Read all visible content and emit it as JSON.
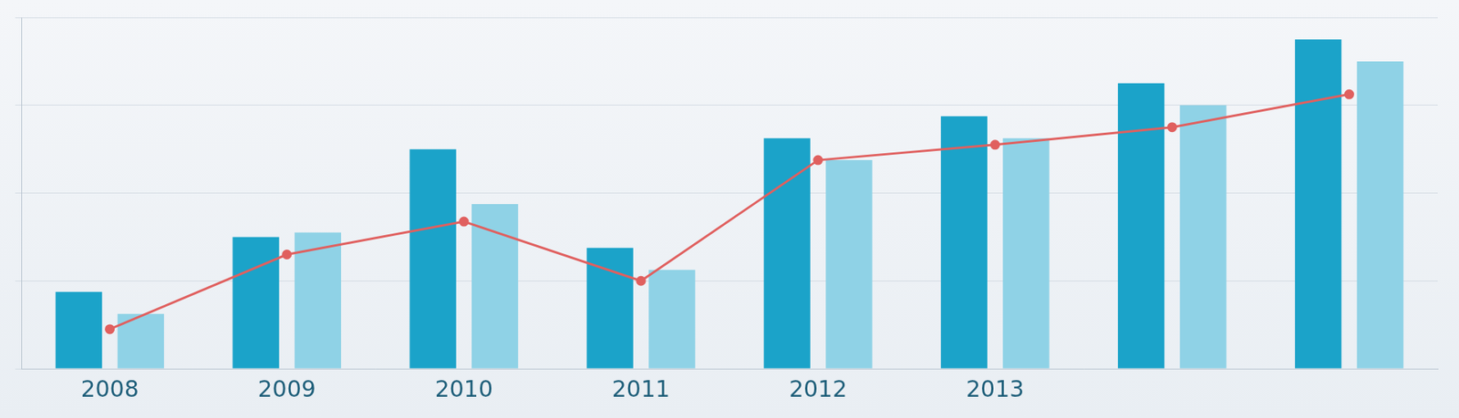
{
  "chart_data": {
    "type": "bar",
    "categories": [
      "2008",
      "2009",
      "2010",
      "2011",
      "2012",
      "2013",
      null,
      null
    ],
    "series": [
      {
        "type": "bar",
        "color": "#1ba3c9",
        "values": [
          35,
          60,
          100,
          55,
          105,
          115,
          130,
          150
        ]
      },
      {
        "type": "bar",
        "color": "#8fd2e6",
        "values": [
          25,
          62,
          75,
          45,
          95,
          105,
          120,
          140
        ]
      },
      {
        "type": "line",
        "color": "#e0605f",
        "marker": "circle",
        "values": [
          18,
          52,
          67,
          40,
          95,
          102,
          110,
          125
        ]
      }
    ],
    "ylim": [
      0,
      160
    ],
    "yticks": [
      0,
      40,
      80,
      120,
      160
    ],
    "grid": true,
    "tick_labels": "x"
  }
}
